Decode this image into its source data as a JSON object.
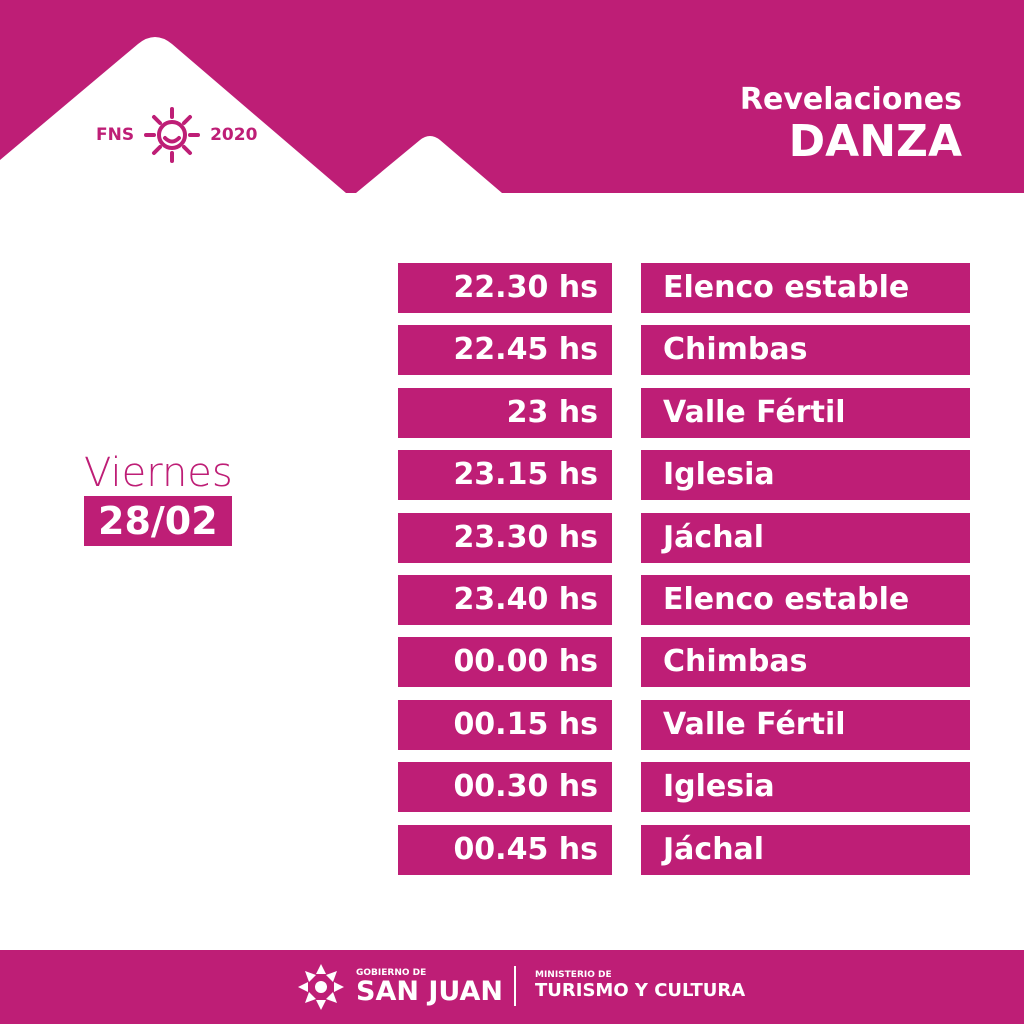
{
  "colors": {
    "accent": "#be1e76",
    "background": "#ffffff"
  },
  "header": {
    "logo_left": "FNS",
    "logo_right": "2020",
    "logo_icon": "sun-face-icon",
    "title_line1": "Revelaciones",
    "title_line2": "DANZA"
  },
  "day": {
    "name": "Viernes",
    "date": "28/02"
  },
  "schedule": [
    {
      "time": "22.30 hs",
      "name": "Elenco estable"
    },
    {
      "time": "22.45 hs",
      "name": "Chimbas"
    },
    {
      "time": "23 hs",
      "name": "Valle Fértil"
    },
    {
      "time": "23.15 hs",
      "name": "Iglesia"
    },
    {
      "time": "23.30 hs",
      "name": "Jáchal"
    },
    {
      "time": "23.40 hs",
      "name": "Elenco estable"
    },
    {
      "time": "00.00 hs",
      "name": "Chimbas"
    },
    {
      "time": "00.15 hs",
      "name": "Valle Fértil"
    },
    {
      "time": "00.30 hs",
      "name": "Iglesia"
    },
    {
      "time": "00.45 hs",
      "name": "Jáchal"
    }
  ],
  "footer": {
    "gov_small": "GOBIERNO DE",
    "gov_big": "SAN JUAN",
    "min_small": "MINISTERIO DE",
    "min_big": "TURISMO Y CULTURA",
    "gov_icon": "san-juan-sun-icon"
  }
}
